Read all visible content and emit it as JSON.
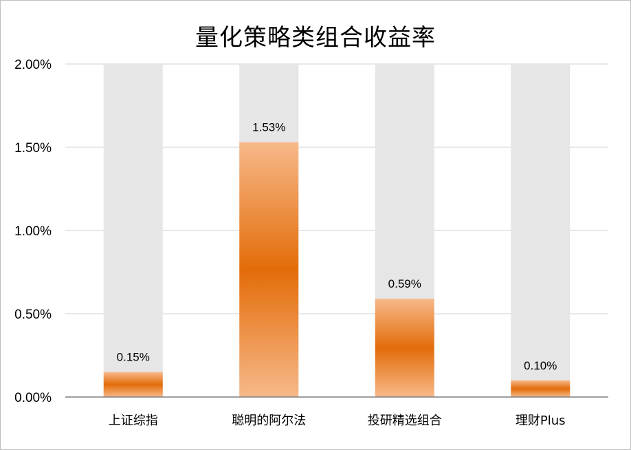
{
  "chart_data": {
    "type": "bar",
    "title": "量化策略类组合收益率",
    "categories": [
      "上证综指",
      "聪明的阿尔法",
      "投研精选组合",
      "理财Plus"
    ],
    "values": [
      0.15,
      1.53,
      0.59,
      0.1
    ],
    "data_labels": [
      "0.15%",
      "1.53%",
      "0.59%",
      "0.10%"
    ],
    "value_unit": "%",
    "xlabel": "",
    "ylabel": "",
    "ylim": [
      0,
      2
    ],
    "yticks": [
      0,
      0.5,
      1.0,
      1.5,
      2.0
    ],
    "ytick_labels": [
      "0.00%",
      "0.50%",
      "1.00%",
      "1.50%",
      "2.00%"
    ],
    "grid": true,
    "legend": "none",
    "background_bars": true,
    "colors": {
      "bar_dark": "#e36c09",
      "bar_light": "#f7b98a",
      "background_bar": "#e6e6e6",
      "gridline": "#d9d9d9",
      "axis": "#7f7f7f"
    }
  }
}
